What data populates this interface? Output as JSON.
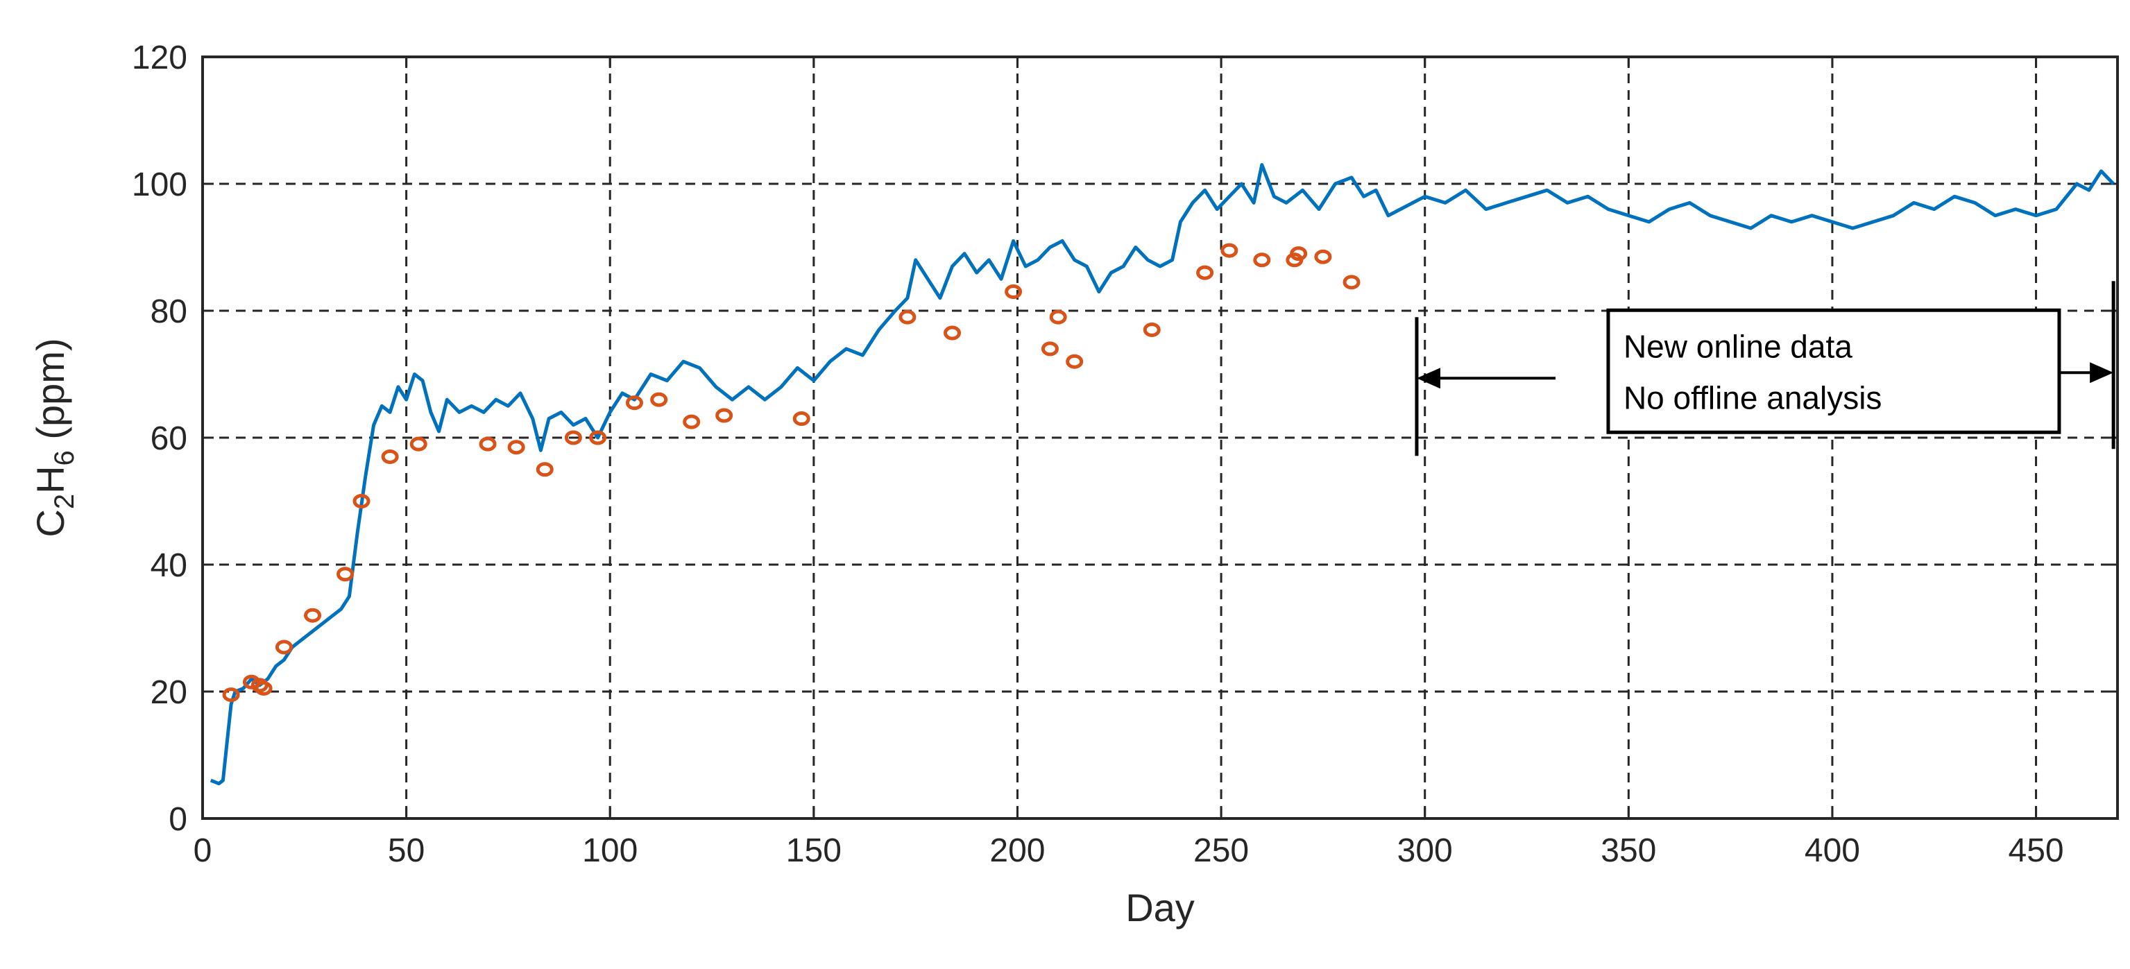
{
  "chart_data": {
    "type": "line",
    "xlabel": "Day",
    "ylabel": "C2H6 (ppm)",
    "ylabel_parts": {
      "c": "C",
      "sub1": "2",
      "h": "H",
      "sub2": "6",
      "unit": " (ppm)"
    },
    "xlim": [
      0,
      470
    ],
    "ylim": [
      0,
      120
    ],
    "xticks": [
      0,
      50,
      100,
      150,
      200,
      250,
      300,
      350,
      400,
      450
    ],
    "yticks": [
      0,
      20,
      40,
      60,
      80,
      100,
      120
    ],
    "grid": true,
    "colors": {
      "online": "#0072bd",
      "offline": "#d95319",
      "axis": "#262626"
    },
    "series": [
      {
        "kind": "line",
        "x": [
          2,
          4,
          5,
          6,
          7,
          8,
          10,
          12,
          14,
          16,
          18,
          20,
          22,
          24,
          26,
          28,
          30,
          32,
          34,
          36,
          38,
          40,
          42,
          44,
          46,
          48,
          50,
          52,
          54,
          56,
          58,
          60,
          63,
          66,
          69,
          72,
          75,
          78,
          81,
          83,
          85,
          88,
          91,
          94,
          97,
          100,
          103,
          106,
          110,
          114,
          118,
          122,
          126,
          130,
          134,
          138,
          142,
          146,
          150,
          154,
          158,
          162,
          166,
          170,
          173,
          175,
          178,
          181,
          184,
          187,
          190,
          193,
          196,
          199,
          202,
          205,
          208,
          211,
          214,
          217,
          220,
          223,
          226,
          229,
          232,
          235,
          238,
          240,
          243,
          246,
          249,
          252,
          255,
          258,
          260,
          263,
          266,
          270,
          274,
          278,
          282,
          285,
          288,
          291,
          294,
          297,
          300,
          305,
          310,
          315,
          320,
          325,
          330,
          335,
          340,
          345,
          350,
          355,
          360,
          365,
          370,
          375,
          380,
          385,
          390,
          395,
          400,
          405,
          410,
          415,
          420,
          425,
          430,
          435,
          440,
          445,
          450,
          455,
          460,
          463,
          466,
          469
        ],
        "y": [
          6,
          5.5,
          6,
          12,
          18,
          20,
          20.5,
          22,
          21,
          22,
          24,
          25,
          27,
          28,
          29,
          30,
          31,
          32,
          33,
          35,
          45,
          54,
          62,
          65,
          64,
          68,
          66,
          70,
          69,
          64,
          61,
          66,
          64,
          65,
          64,
          66,
          65,
          67,
          63,
          58,
          63,
          64,
          62,
          63,
          60,
          64,
          67,
          66,
          70,
          69,
          72,
          71,
          68,
          66,
          68,
          66,
          68,
          71,
          69,
          72,
          74,
          73,
          77,
          80,
          82,
          88,
          85,
          82,
          87,
          89,
          86,
          88,
          85,
          91,
          87,
          88,
          90,
          91,
          88,
          87,
          83,
          86,
          87,
          90,
          88,
          87,
          88,
          94,
          97,
          99,
          96,
          98,
          100,
          97,
          103,
          98,
          97,
          99,
          96,
          100,
          101,
          98,
          99,
          95,
          96,
          97,
          98,
          97,
          99,
          96,
          97,
          98,
          99,
          97,
          98,
          96,
          95,
          94,
          96,
          97,
          95,
          94,
          93,
          95,
          94,
          95,
          94,
          93,
          94,
          95,
          97,
          96,
          98,
          97,
          95,
          96,
          95,
          96,
          100,
          99,
          102,
          100
        ]
      },
      {
        "kind": "scatter",
        "x": [
          7,
          12,
          14,
          15,
          20,
          27,
          35,
          39,
          46,
          53,
          70,
          77,
          84,
          91,
          97,
          106,
          112,
          120,
          128,
          147,
          173,
          184,
          199,
          208,
          210,
          214,
          233,
          246,
          252,
          260,
          268,
          269,
          275,
          282
        ],
        "y": [
          19.5,
          21.5,
          21,
          20.5,
          27,
          32,
          38.5,
          50,
          57,
          59,
          59,
          58.5,
          55,
          60,
          60,
          65.5,
          66,
          62.5,
          63.5,
          63,
          79,
          76.5,
          83,
          74,
          79,
          72,
          77,
          86,
          89.5,
          88,
          88,
          89,
          88.5,
          84.5
        ]
      }
    ],
    "annotation": {
      "lines": [
        "New  online data",
        "No offline analysis"
      ],
      "x_start": 298,
      "x_end": 469,
      "y": 65
    }
  }
}
